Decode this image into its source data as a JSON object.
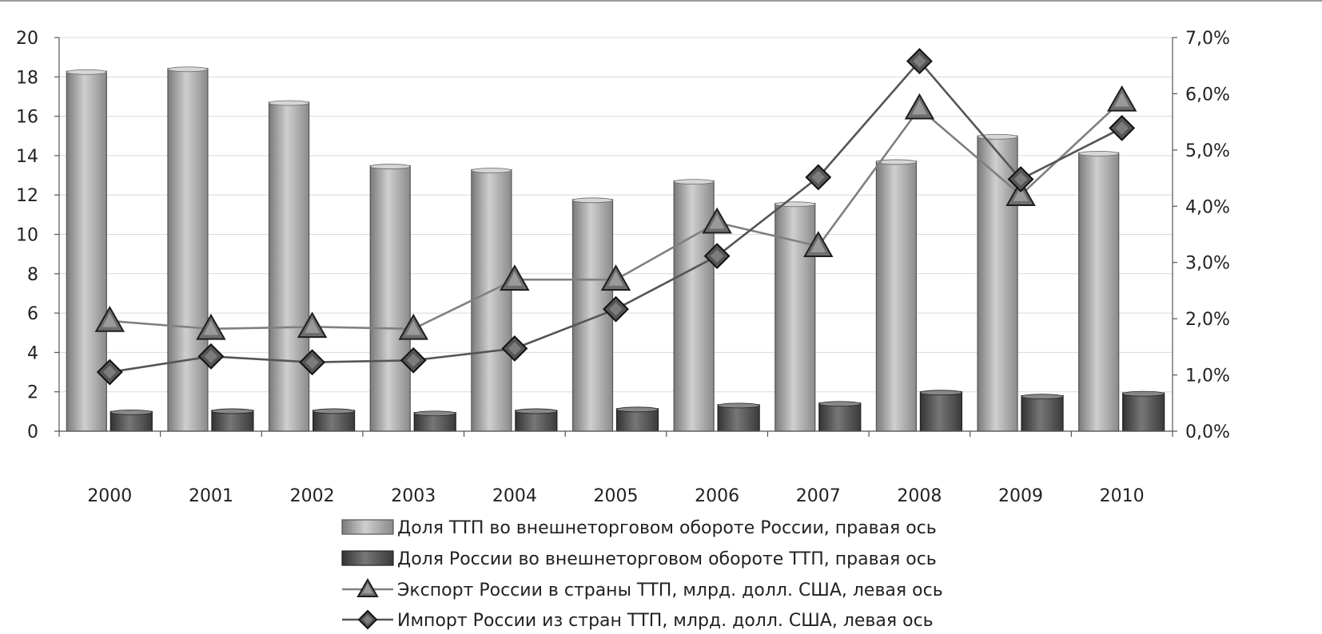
{
  "chart_data": {
    "type": "bar",
    "categories": [
      "2000",
      "2001",
      "2002",
      "2003",
      "2004",
      "2005",
      "2006",
      "2007",
      "2008",
      "2009",
      "2010"
    ],
    "left_axis": {
      "ylim": [
        0,
        20
      ],
      "ticks": [
        "0",
        "2",
        "4",
        "6",
        "8",
        "10",
        "12",
        "14",
        "16",
        "18",
        "20"
      ]
    },
    "right_axis": {
      "ylim": [
        0,
        7
      ],
      "ticks": [
        "0,0%",
        "1,0%",
        "2,0%",
        "3,0%",
        "4,0%",
        "5,0%",
        "6,0%",
        "7,0%"
      ]
    },
    "grid": true,
    "legend_position": "bottom",
    "series": [
      {
        "name": "Доля ТТП во внешнеторговом обороте России, правая ось",
        "type": "bar",
        "axis": "right",
        "color": "#a6a6a6",
        "values": [
          6.4,
          6.45,
          5.85,
          4.72,
          4.65,
          4.12,
          4.45,
          4.05,
          4.8,
          5.25,
          4.95
        ]
      },
      {
        "name": "Доля России во внешнеторговом обороте ТТП, правая ось",
        "type": "bar",
        "axis": "right",
        "color": "#595959",
        "values": [
          0.35,
          0.37,
          0.37,
          0.33,
          0.37,
          0.4,
          0.47,
          0.5,
          0.7,
          0.63,
          0.68
        ]
      },
      {
        "name": "Экспорт России в страны ТТП, млрд. долл. США, левая ось",
        "type": "line",
        "axis": "left",
        "marker": "triangle",
        "color": "#7f7f7f",
        "values": [
          5.6,
          5.2,
          5.3,
          5.2,
          7.7,
          7.7,
          10.6,
          9.4,
          16.4,
          12.0,
          16.8
        ]
      },
      {
        "name": "Импорт России из стран ТТП, млрд. долл. США, левая ось",
        "type": "line",
        "axis": "left",
        "marker": "diamond",
        "color": "#595959",
        "values": [
          3.0,
          3.8,
          3.5,
          3.6,
          4.2,
          6.2,
          8.9,
          12.9,
          18.8,
          12.8,
          15.4
        ]
      }
    ]
  },
  "legend": [
    "Доля ТТП во внешнеторговом обороте России, правая ось",
    "Доля России во внешнеторговом обороте ТТП, правая ось",
    "Экспорт России в страны ТТП, млрд. долл. США, левая ось",
    "Импорт России из стран ТТП, млрд. долл. США, левая ось"
  ]
}
